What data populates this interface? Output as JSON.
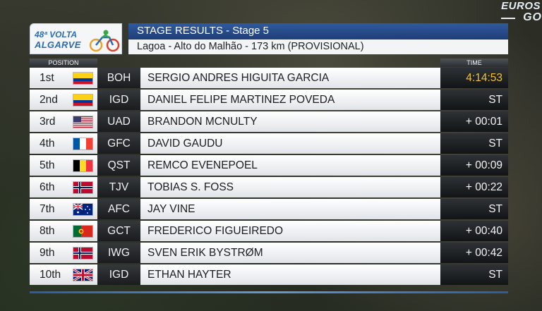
{
  "broadcaster": {
    "line1": "EUROS",
    "line2": "GO"
  },
  "logo": {
    "line1": "48ª VOLTA",
    "line2": "ALGARVE",
    "icon": "cyclist-logo-icon"
  },
  "header": {
    "title": "STAGE RESULTS - Stage 5",
    "subtitle": "Lagoa - Alto do Malhão - 173 km (PROVISIONAL)"
  },
  "columns": {
    "position": "POSITION",
    "time": "TIME"
  },
  "rows": [
    {
      "rank": "1st",
      "flag": "colombia",
      "team": "BOH",
      "name": "SERGIO ANDRES HIGUITA GARCIA",
      "time": "4:14:53"
    },
    {
      "rank": "2nd",
      "flag": "colombia",
      "team": "IGD",
      "name": "DANIEL FELIPE MARTINEZ POVEDA",
      "time": "ST"
    },
    {
      "rank": "3rd",
      "flag": "usa",
      "team": "UAD",
      "name": "BRANDON MCNULTY",
      "time": "+ 00:01"
    },
    {
      "rank": "4th",
      "flag": "france",
      "team": "GFC",
      "name": "DAVID GAUDU",
      "time": "ST"
    },
    {
      "rank": "5th",
      "flag": "belgium",
      "team": "QST",
      "name": "REMCO EVENEPOEL",
      "time": "+ 00:09"
    },
    {
      "rank": "6th",
      "flag": "norway",
      "team": "TJV",
      "name": "TOBIAS S. FOSS",
      "time": "+ 00:22"
    },
    {
      "rank": "7th",
      "flag": "australia",
      "team": "AFC",
      "name": "JAY VINE",
      "time": "ST"
    },
    {
      "rank": "8th",
      "flag": "portugal",
      "team": "GCT",
      "name": "FREDERICO FIGUEIREDO",
      "time": "+ 00:40"
    },
    {
      "rank": "9th",
      "flag": "norway",
      "team": "IWG",
      "name": "SVEN ERIK BYSTRØM",
      "time": "+ 00:42"
    },
    {
      "rank": "10th",
      "flag": "uk",
      "team": "IGD",
      "name": "ETHAN HAYTER",
      "time": "ST"
    }
  ],
  "colors": {
    "title_bar": "#2f5a9f",
    "leader_time": "#f2c230"
  }
}
